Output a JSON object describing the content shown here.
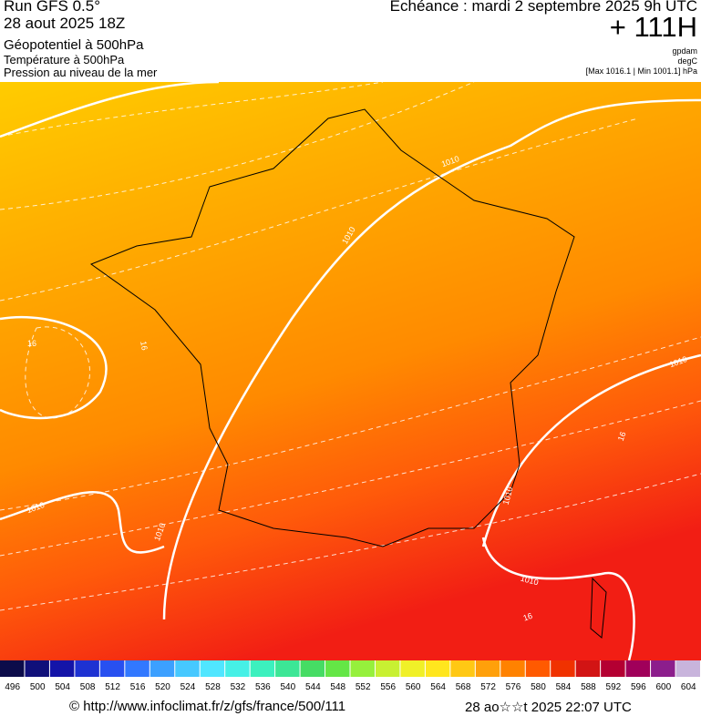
{
  "header": {
    "run": "Run GFS 0.5°",
    "date": "28 aout 2025 18Z",
    "field1": "Géopotentiel à 500hPa",
    "field2": "Température à 500hPa",
    "field3": "Pression au niveau de la mer",
    "echeance": "Echéance : mardi 2 septembre 2025 9h UTC",
    "lead": "+ 111H",
    "unit1": "gpdam",
    "unit2": "degC",
    "minmax": "[Max 1016.1 | Min 1001.1] hPa"
  },
  "map": {
    "contour_labels": [
      "1010",
      "1010",
      "1010",
      "1010",
      "1010",
      "1010",
      "1010",
      "16",
      "16",
      "16",
      "16"
    ]
  },
  "legend": {
    "ticks": [
      496,
      500,
      504,
      508,
      512,
      516,
      520,
      524,
      528,
      532,
      536,
      540,
      544,
      548,
      552,
      556,
      560,
      564,
      568,
      572,
      576,
      580,
      584,
      588,
      592,
      596,
      600,
      604
    ],
    "colors": [
      "#0c0c4a",
      "#10107a",
      "#1414a8",
      "#1e32d2",
      "#2850f0",
      "#3278ff",
      "#3ca0ff",
      "#46c8ff",
      "#50e6ff",
      "#46f0e6",
      "#3cf0be",
      "#3ce696",
      "#46dc64",
      "#64e646",
      "#96f03c",
      "#c8f032",
      "#f0f028",
      "#ffe61e",
      "#ffc814",
      "#ffa00a",
      "#ff8200",
      "#ff5a00",
      "#f03200",
      "#d21414",
      "#b40032",
      "#a0005a",
      "#8c1e8c",
      "#c8b4dc"
    ]
  },
  "footer": {
    "url": "© http://www.infoclimat.fr/z/gfs/france/500/111",
    "time": "28 ao☆☆t 2025 22:07 UTC"
  }
}
